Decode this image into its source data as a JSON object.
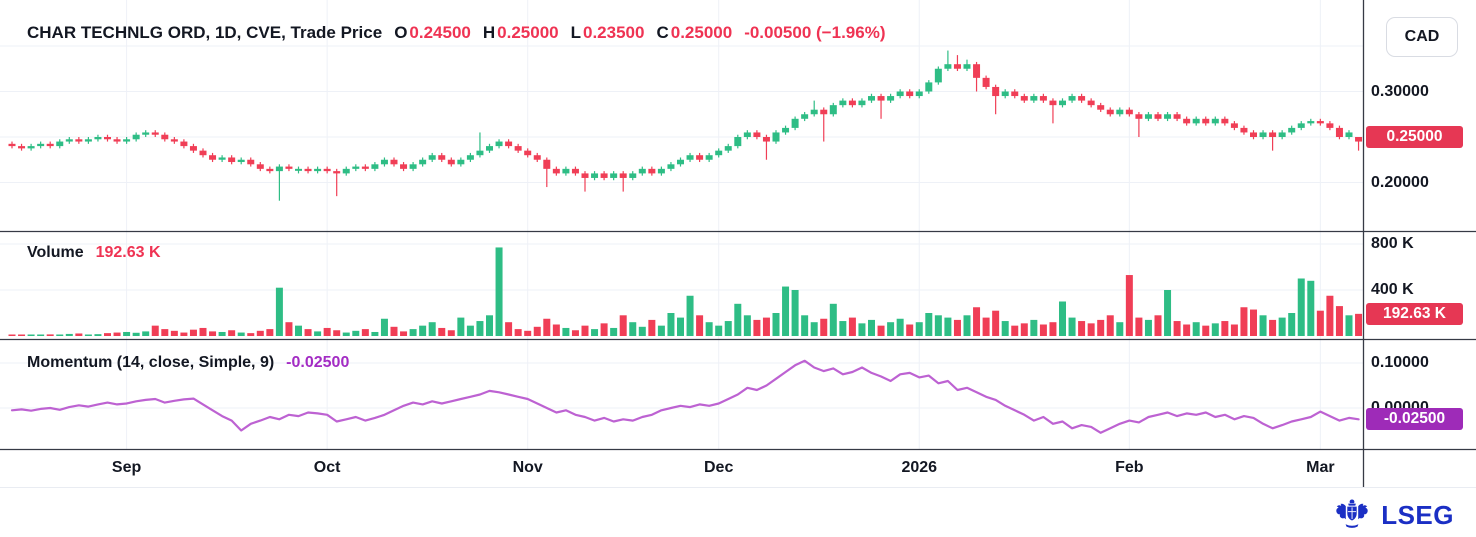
{
  "header": {
    "title": "CHAR TECHNLG ORD, 1D, CVE, Trade Price",
    "ohlc": [
      {
        "k": "O",
        "v": "0.24500"
      },
      {
        "k": "H",
        "v": "0.25000"
      },
      {
        "k": "L",
        "v": "0.23500"
      },
      {
        "k": "C",
        "v": "0.25000"
      }
    ],
    "change": "-0.00500 (−1.96%)"
  },
  "panels": {
    "volume": {
      "label": "Volume",
      "value": "192.63 K"
    },
    "momentum": {
      "label": "Momentum (14, close, Simple, 9)",
      "value": "-0.02500"
    }
  },
  "axis": {
    "currency_button": "CAD",
    "price_ticks": [
      {
        "v": 0.3,
        "label": "0.30000"
      },
      {
        "v": 0.25,
        "label": "0.25000"
      },
      {
        "v": 0.2,
        "label": "0.20000"
      }
    ],
    "price_badge": {
      "v": 0.25,
      "label": "0.25000"
    },
    "volume_ticks": [
      {
        "v": 800,
        "label": "800 K"
      },
      {
        "v": 400,
        "label": "400 K"
      }
    ],
    "volume_badge": {
      "v": 192.63,
      "label": "192.63 K"
    },
    "momentum_ticks": [
      {
        "v": 0.1,
        "label": "0.10000"
      },
      {
        "v": 0.0,
        "label": "0.00000"
      }
    ],
    "momentum_badge": {
      "v": -0.025,
      "label": "-0.02500"
    }
  },
  "footer": {
    "brand": "LSEG"
  },
  "colors": {
    "up": "#2ebd85",
    "down": "#f03e56",
    "accent_red": "#ef3353",
    "purple_line": "#bd62d2",
    "purple_badge": "#9e2bb8",
    "badge_red": "#e63754",
    "text": "#131722",
    "grid": "#eef1f7",
    "separator": "#363a45",
    "hairline": "#e9ecf2",
    "brand_blue": "#1b2fc4"
  },
  "chart_data": [
    {
      "type": "candlestick",
      "title": "CHAR TECHNLG ORD, 1D, CVE, Trade Price",
      "currency": "CAD",
      "ylim": [
        0.15,
        0.37
      ],
      "grid_levels": [
        0.35,
        0.3,
        0.25,
        0.2
      ],
      "x_ticks": [
        {
          "i": 12,
          "label": "Sep"
        },
        {
          "i": 33,
          "label": "Oct"
        },
        {
          "i": 54,
          "label": "Nov"
        },
        {
          "i": 74,
          "label": "Dec"
        },
        {
          "i": 95,
          "label": "2026"
        },
        {
          "i": 117,
          "label": "Feb"
        },
        {
          "i": 137,
          "label": "Mar"
        }
      ],
      "last": {
        "open": 0.245,
        "high": 0.25,
        "low": 0.235,
        "close": 0.25,
        "change": -0.005,
        "change_pct": -1.96
      },
      "candles": [
        [
          0.2425,
          0.245,
          0.2375,
          0.24
        ],
        [
          0.24,
          0.2425,
          0.235,
          0.2375
        ],
        [
          0.2375,
          0.2425,
          0.235,
          0.24
        ],
        [
          0.24,
          0.245,
          0.2375,
          0.2425
        ],
        [
          0.2425,
          0.245,
          0.2375,
          0.24
        ],
        [
          0.24,
          0.2475,
          0.2375,
          0.245
        ],
        [
          0.245,
          0.25,
          0.2425,
          0.2475
        ],
        [
          0.2475,
          0.25,
          0.2425,
          0.245
        ],
        [
          0.245,
          0.25,
          0.2425,
          0.2475
        ],
        [
          0.2475,
          0.2525,
          0.245,
          0.25
        ],
        [
          0.25,
          0.2525,
          0.245,
          0.2475
        ],
        [
          0.2475,
          0.25,
          0.2425,
          0.245
        ],
        [
          0.245,
          0.25,
          0.2425,
          0.2475
        ],
        [
          0.2475,
          0.255,
          0.245,
          0.2525
        ],
        [
          0.2525,
          0.2575,
          0.25,
          0.255
        ],
        [
          0.255,
          0.2575,
          0.25,
          0.2525
        ],
        [
          0.2525,
          0.255,
          0.245,
          0.2475
        ],
        [
          0.2475,
          0.25,
          0.2425,
          0.245
        ],
        [
          0.245,
          0.2475,
          0.2375,
          0.24
        ],
        [
          0.24,
          0.2425,
          0.2325,
          0.235
        ],
        [
          0.235,
          0.2375,
          0.2275,
          0.23
        ],
        [
          0.23,
          0.2325,
          0.2225,
          0.225
        ],
        [
          0.225,
          0.23,
          0.2225,
          0.2275
        ],
        [
          0.2275,
          0.23,
          0.22,
          0.2225
        ],
        [
          0.2225,
          0.2275,
          0.22,
          0.225
        ],
        [
          0.225,
          0.2275,
          0.2175,
          0.22
        ],
        [
          0.22,
          0.2225,
          0.2125,
          0.215
        ],
        [
          0.215,
          0.2175,
          0.21,
          0.2125
        ],
        [
          0.2125,
          0.22,
          0.18,
          0.2175
        ],
        [
          0.2175,
          0.22,
          0.2125,
          0.215
        ],
        [
          0.215,
          0.2175,
          0.21,
          0.215
        ],
        [
          0.215,
          0.2175,
          0.21,
          0.2125
        ],
        [
          0.2125,
          0.2175,
          0.21,
          0.215
        ],
        [
          0.215,
          0.2175,
          0.21,
          0.2125
        ],
        [
          0.2125,
          0.215,
          0.185,
          0.21
        ],
        [
          0.21,
          0.2175,
          0.2075,
          0.215
        ],
        [
          0.215,
          0.22,
          0.2125,
          0.2175
        ],
        [
          0.2175,
          0.22,
          0.2125,
          0.215
        ],
        [
          0.215,
          0.2225,
          0.2125,
          0.22
        ],
        [
          0.22,
          0.2275,
          0.2175,
          0.225
        ],
        [
          0.225,
          0.2275,
          0.2175,
          0.22
        ],
        [
          0.22,
          0.2225,
          0.2125,
          0.215
        ],
        [
          0.215,
          0.2225,
          0.2125,
          0.22
        ],
        [
          0.22,
          0.2275,
          0.2175,
          0.225
        ],
        [
          0.225,
          0.2325,
          0.2225,
          0.23
        ],
        [
          0.23,
          0.2325,
          0.2225,
          0.225
        ],
        [
          0.225,
          0.2275,
          0.2175,
          0.22
        ],
        [
          0.22,
          0.2275,
          0.2175,
          0.225
        ],
        [
          0.225,
          0.2325,
          0.2225,
          0.23
        ],
        [
          0.23,
          0.255,
          0.2275,
          0.235
        ],
        [
          0.235,
          0.2425,
          0.2325,
          0.24
        ],
        [
          0.24,
          0.2475,
          0.2375,
          0.245
        ],
        [
          0.245,
          0.2475,
          0.2375,
          0.24
        ],
        [
          0.24,
          0.2425,
          0.2325,
          0.235
        ],
        [
          0.235,
          0.2375,
          0.2275,
          0.23
        ],
        [
          0.23,
          0.2325,
          0.2225,
          0.225
        ],
        [
          0.225,
          0.2275,
          0.195,
          0.215
        ],
        [
          0.215,
          0.2175,
          0.2075,
          0.21
        ],
        [
          0.21,
          0.2175,
          0.2075,
          0.215
        ],
        [
          0.215,
          0.2175,
          0.2075,
          0.21
        ],
        [
          0.21,
          0.2125,
          0.19,
          0.205
        ],
        [
          0.205,
          0.2125,
          0.2025,
          0.21
        ],
        [
          0.21,
          0.2125,
          0.2025,
          0.205
        ],
        [
          0.205,
          0.2125,
          0.2025,
          0.21
        ],
        [
          0.21,
          0.2125,
          0.19,
          0.205
        ],
        [
          0.205,
          0.2125,
          0.2025,
          0.21
        ],
        [
          0.21,
          0.2175,
          0.2075,
          0.215
        ],
        [
          0.215,
          0.2175,
          0.2075,
          0.21
        ],
        [
          0.21,
          0.2175,
          0.2075,
          0.215
        ],
        [
          0.215,
          0.2225,
          0.2125,
          0.22
        ],
        [
          0.22,
          0.2275,
          0.2175,
          0.225
        ],
        [
          0.225,
          0.2325,
          0.2225,
          0.23
        ],
        [
          0.23,
          0.2325,
          0.2225,
          0.225
        ],
        [
          0.225,
          0.2325,
          0.2225,
          0.23
        ],
        [
          0.23,
          0.2375,
          0.2275,
          0.235
        ],
        [
          0.235,
          0.2425,
          0.2325,
          0.24
        ],
        [
          0.24,
          0.2525,
          0.2375,
          0.25
        ],
        [
          0.25,
          0.2575,
          0.2475,
          0.255
        ],
        [
          0.255,
          0.2575,
          0.2475,
          0.25
        ],
        [
          0.25,
          0.2525,
          0.225,
          0.245
        ],
        [
          0.245,
          0.2575,
          0.2425,
          0.255
        ],
        [
          0.255,
          0.2625,
          0.2525,
          0.26
        ],
        [
          0.26,
          0.2725,
          0.2575,
          0.27
        ],
        [
          0.27,
          0.2775,
          0.2675,
          0.275
        ],
        [
          0.275,
          0.29,
          0.2725,
          0.28
        ],
        [
          0.28,
          0.2825,
          0.245,
          0.275
        ],
        [
          0.275,
          0.2875,
          0.2725,
          0.285
        ],
        [
          0.285,
          0.2925,
          0.2825,
          0.29
        ],
        [
          0.29,
          0.2925,
          0.2825,
          0.285
        ],
        [
          0.285,
          0.2925,
          0.2825,
          0.29
        ],
        [
          0.29,
          0.2975,
          0.2875,
          0.295
        ],
        [
          0.295,
          0.2975,
          0.27,
          0.29
        ],
        [
          0.29,
          0.2975,
          0.2875,
          0.295
        ],
        [
          0.295,
          0.3025,
          0.2925,
          0.3
        ],
        [
          0.3,
          0.3025,
          0.2925,
          0.295
        ],
        [
          0.295,
          0.3025,
          0.2925,
          0.3
        ],
        [
          0.3,
          0.3125,
          0.2975,
          0.31
        ],
        [
          0.31,
          0.3275,
          0.3075,
          0.325
        ],
        [
          0.325,
          0.345,
          0.3225,
          0.33
        ],
        [
          0.33,
          0.34,
          0.3225,
          0.325
        ],
        [
          0.325,
          0.335,
          0.3225,
          0.33
        ],
        [
          0.33,
          0.3325,
          0.3,
          0.315
        ],
        [
          0.315,
          0.3175,
          0.3025,
          0.305
        ],
        [
          0.305,
          0.3075,
          0.275,
          0.295
        ],
        [
          0.295,
          0.3025,
          0.2925,
          0.3
        ],
        [
          0.3,
          0.3025,
          0.2925,
          0.295
        ],
        [
          0.295,
          0.2975,
          0.2875,
          0.29
        ],
        [
          0.29,
          0.2975,
          0.2875,
          0.295
        ],
        [
          0.295,
          0.2975,
          0.2875,
          0.29
        ],
        [
          0.29,
          0.2925,
          0.265,
          0.285
        ],
        [
          0.285,
          0.2925,
          0.2825,
          0.29
        ],
        [
          0.29,
          0.2975,
          0.2875,
          0.295
        ],
        [
          0.295,
          0.2975,
          0.2875,
          0.29
        ],
        [
          0.29,
          0.2925,
          0.2825,
          0.285
        ],
        [
          0.285,
          0.2875,
          0.2775,
          0.28
        ],
        [
          0.28,
          0.2825,
          0.2725,
          0.275
        ],
        [
          0.275,
          0.2825,
          0.2725,
          0.28
        ],
        [
          0.28,
          0.2825,
          0.2725,
          0.275
        ],
        [
          0.275,
          0.2775,
          0.25,
          0.27
        ],
        [
          0.27,
          0.2775,
          0.2675,
          0.275
        ],
        [
          0.275,
          0.2775,
          0.2675,
          0.27
        ],
        [
          0.27,
          0.2775,
          0.2675,
          0.275
        ],
        [
          0.275,
          0.2775,
          0.2675,
          0.27
        ],
        [
          0.27,
          0.2725,
          0.2625,
          0.265
        ],
        [
          0.265,
          0.2725,
          0.2625,
          0.27
        ],
        [
          0.27,
          0.2725,
          0.2625,
          0.265
        ],
        [
          0.265,
          0.2725,
          0.2625,
          0.27
        ],
        [
          0.27,
          0.2725,
          0.2625,
          0.265
        ],
        [
          0.265,
          0.2675,
          0.2575,
          0.26
        ],
        [
          0.26,
          0.2625,
          0.2525,
          0.255
        ],
        [
          0.255,
          0.2575,
          0.2475,
          0.25
        ],
        [
          0.25,
          0.2575,
          0.2475,
          0.255
        ],
        [
          0.255,
          0.2575,
          0.235,
          0.25
        ],
        [
          0.25,
          0.2575,
          0.2475,
          0.255
        ],
        [
          0.255,
          0.2625,
          0.2525,
          0.26
        ],
        [
          0.26,
          0.2675,
          0.2575,
          0.265
        ],
        [
          0.265,
          0.27,
          0.2625,
          0.2675
        ],
        [
          0.2675,
          0.27,
          0.2625,
          0.265
        ],
        [
          0.265,
          0.2675,
          0.2575,
          0.26
        ],
        [
          0.26,
          0.2625,
          0.2475,
          0.25
        ],
        [
          0.25,
          0.2575,
          0.2475,
          0.255
        ],
        [
          0.245,
          0.25,
          0.235,
          0.25
        ]
      ]
    },
    {
      "type": "bar",
      "name": "Volume",
      "unit": "K",
      "last_value": 192.63,
      "ylim": [
        0,
        900
      ],
      "grid_levels": [
        800,
        400
      ],
      "values": [
        8,
        12,
        6,
        10,
        14,
        9,
        18,
        22,
        12,
        16,
        25,
        30,
        35,
        28,
        40,
        90,
        60,
        45,
        30,
        55,
        70,
        40,
        35,
        50,
        30,
        25,
        45,
        60,
        420,
        120,
        90,
        60,
        40,
        70,
        50,
        30,
        45,
        60,
        35,
        150,
        80,
        40,
        60,
        90,
        120,
        70,
        50,
        160,
        90,
        130,
        180,
        770,
        120,
        60,
        45,
        80,
        150,
        100,
        70,
        50,
        90,
        60,
        110,
        70,
        180,
        120,
        80,
        140,
        90,
        200,
        160,
        350,
        180,
        120,
        90,
        130,
        280,
        180,
        140,
        160,
        200,
        430,
        400,
        180,
        120,
        150,
        280,
        130,
        160,
        110,
        140,
        90,
        120,
        150,
        100,
        120,
        200,
        180,
        160,
        140,
        180,
        250,
        160,
        220,
        130,
        90,
        110,
        140,
        100,
        120,
        300,
        160,
        130,
        110,
        140,
        180,
        120,
        530,
        160,
        140,
        180,
        400,
        130,
        100,
        120,
        90,
        110,
        130,
        100,
        250,
        230,
        180,
        140,
        160,
        200,
        500,
        480,
        220,
        350,
        260,
        180,
        192.63
      ]
    },
    {
      "type": "line",
      "name": "Momentum (14, close, Simple, 9)",
      "last_value": -0.025,
      "ylim": [
        -0.09,
        0.12
      ],
      "grid_levels": [
        0.1,
        0.0
      ],
      "values": [
        -0.005,
        -0.003,
        -0.006,
        -0.002,
        0,
        -0.004,
        0.002,
        0.006,
        0.003,
        0.008,
        0.012,
        0.008,
        0.01,
        0.015,
        0.018,
        0.02,
        0.012,
        0.016,
        0.019,
        0.021,
        0.008,
        -0.005,
        -0.018,
        -0.028,
        -0.05,
        -0.035,
        -0.028,
        -0.02,
        -0.025,
        -0.015,
        -0.018,
        -0.01,
        -0.012,
        -0.015,
        -0.03,
        -0.025,
        -0.02,
        -0.028,
        -0.022,
        -0.015,
        -0.005,
        0.005,
        0.012,
        0.008,
        0.015,
        0.01,
        0.015,
        0.02,
        0.025,
        0.03,
        0.038,
        0.035,
        0.03,
        0.025,
        0.02,
        0.01,
        0,
        -0.01,
        -0.005,
        -0.015,
        -0.02,
        -0.028,
        -0.022,
        -0.03,
        -0.025,
        -0.028,
        -0.02,
        -0.015,
        -0.005,
        0,
        0.005,
        0.002,
        0.008,
        0.005,
        0.01,
        0.02,
        0.03,
        0.045,
        0.04,
        0.05,
        0.065,
        0.08,
        0.095,
        0.105,
        0.09,
        0.082,
        0.088,
        0.075,
        0.08,
        0.09,
        0.078,
        0.07,
        0.06,
        0.075,
        0.078,
        0.068,
        0.072,
        0.055,
        0.06,
        0.04,
        0.045,
        0.035,
        0.025,
        0.018,
        0.005,
        -0.005,
        -0.015,
        -0.028,
        -0.02,
        -0.035,
        -0.03,
        -0.045,
        -0.038,
        -0.042,
        -0.055,
        -0.045,
        -0.035,
        -0.028,
        -0.032,
        -0.02,
        -0.015,
        -0.01,
        -0.018,
        -0.012,
        -0.015,
        -0.01,
        -0.02,
        -0.015,
        -0.025,
        -0.018,
        -0.022,
        -0.035,
        -0.045,
        -0.038,
        -0.03,
        -0.025,
        -0.02,
        -0.008,
        -0.018,
        -0.028,
        -0.022,
        -0.025
      ]
    }
  ]
}
